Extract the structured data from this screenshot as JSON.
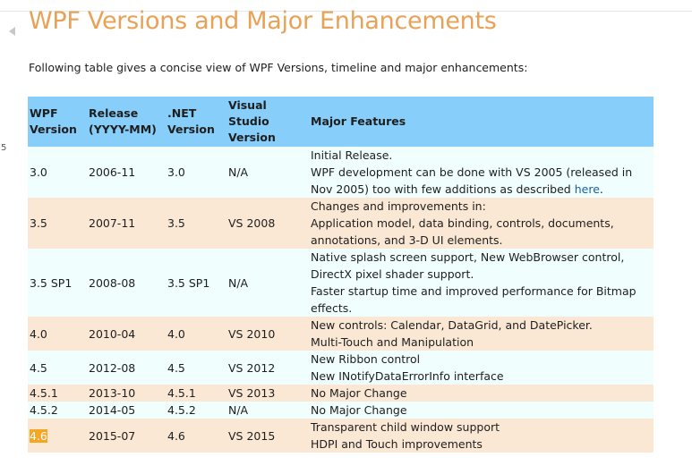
{
  "page": {
    "title": "WPF Versions and Major Enhancements",
    "intro": "Following table gives a concise view of WPF Versions, timeline and major enhancements:",
    "gutter_number": "5"
  },
  "table": {
    "headers": {
      "wpf_line1": "WPF",
      "wpf_line2": "Version",
      "release_line1": "Release",
      "release_line2": "(YYYY-MM)",
      "net_line1": ".NET",
      "net_line2": "Version",
      "vs_line1": "Visual Studio",
      "vs_line2": "Version",
      "features": "Major Features"
    },
    "rows": [
      {
        "wpf": "3.0",
        "release": "2006-11",
        "net": "3.0",
        "vs": "N/A",
        "features": [
          "Initial Release.",
          "WPF development can be done with VS 2005 (released in Nov 2005) too with few additions as described "
        ],
        "link_text": "here",
        "link_suffix": "."
      },
      {
        "wpf": "3.5",
        "release": "2007-11",
        "net": "3.5",
        "vs": "VS 2008",
        "features": [
          "Changes and improvements in:",
          "Application model, data binding, controls, documents, annotations, and 3-D UI elements."
        ]
      },
      {
        "wpf": "3.5 SP1",
        "release": "2008-08",
        "net": "3.5 SP1",
        "vs": "N/A",
        "features": [
          "Native splash screen support, New WebBrowser control,",
          "DirectX pixel shader support.",
          "Faster startup time and improved performance for Bitmap effects."
        ]
      },
      {
        "wpf": "4.0",
        "release": "2010-04",
        "net": "4.0",
        "vs": "VS 2010",
        "features": [
          "New controls: Calendar, DataGrid, and DatePicker.",
          "Multi-Touch and Manipulation"
        ]
      },
      {
        "wpf": "4.5",
        "release": "2012-08",
        "net": "4.5",
        "vs": "VS 2012",
        "features": [
          "New Ribbon control",
          "New INotifyDataErrorInfo interface"
        ]
      },
      {
        "wpf": "4.5.1",
        "release": "2013-10",
        "net": "4.5.1",
        "vs": "VS 2013",
        "features": [
          "No Major Change"
        ]
      },
      {
        "wpf": "4.5.2",
        "release": "2014-05",
        "net": "4.5.2",
        "vs": "N/A",
        "features": [
          "No Major Change"
        ]
      },
      {
        "wpf": "4.6",
        "release": "2015-07",
        "net": "4.6",
        "vs": "VS 2015",
        "features": [
          "Transparent child window support",
          "HDPI and Touch improvements"
        ]
      }
    ]
  },
  "colors": {
    "title": "#e8a258",
    "header_bg": "#87cefa",
    "row_odd_bg": "#f0fefe",
    "row_even_bg": "#fae8d5",
    "highlight": "#f5a623",
    "link": "#1a5fa8"
  }
}
